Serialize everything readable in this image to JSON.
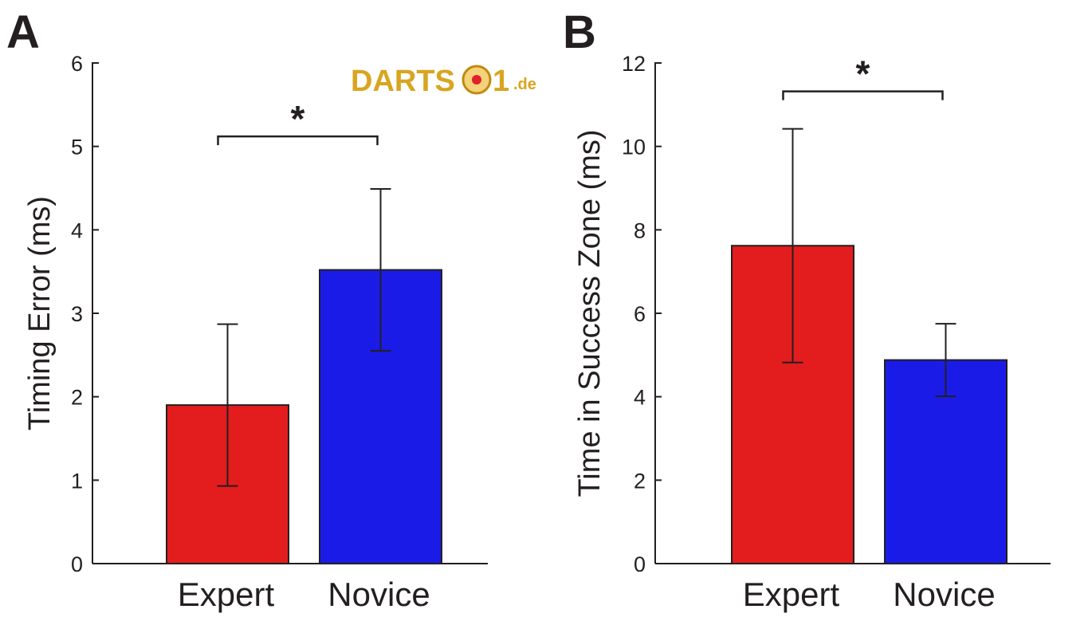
{
  "watermark": {
    "text": "DARTS01.de",
    "colors": {
      "gold": "#d9a520",
      "dot": "#e0202a"
    }
  },
  "colors": {
    "expert": "#e31c1e",
    "novice": "#1b1be8",
    "ink": "#231f20"
  },
  "chart_data": [
    {
      "panel": "A",
      "type": "bar",
      "categories": [
        "Expert",
        "Novice"
      ],
      "values": [
        1.9,
        3.52
      ],
      "error": [
        0.97,
        0.97
      ],
      "ylabel": "Timing Error  (ms)",
      "ylim": [
        0,
        6
      ],
      "yticks": [
        0,
        1,
        2,
        3,
        4,
        5,
        6
      ],
      "significance": {
        "label": "*",
        "between": [
          "Expert",
          "Novice"
        ],
        "level": 5.12
      },
      "grid": false,
      "legend": "none"
    },
    {
      "panel": "B",
      "type": "bar",
      "categories": [
        "Expert",
        "Novice"
      ],
      "values": [
        7.62,
        4.88
      ],
      "error": [
        2.8,
        0.87
      ],
      "ylabel": "Time in Success Zone  (ms)",
      "ylim": [
        0,
        12
      ],
      "yticks": [
        0,
        2,
        4,
        6,
        8,
        10,
        12
      ],
      "significance": {
        "label": "*",
        "between": [
          "Expert",
          "Novice"
        ],
        "level": 11.32
      },
      "grid": false,
      "legend": "none"
    }
  ]
}
